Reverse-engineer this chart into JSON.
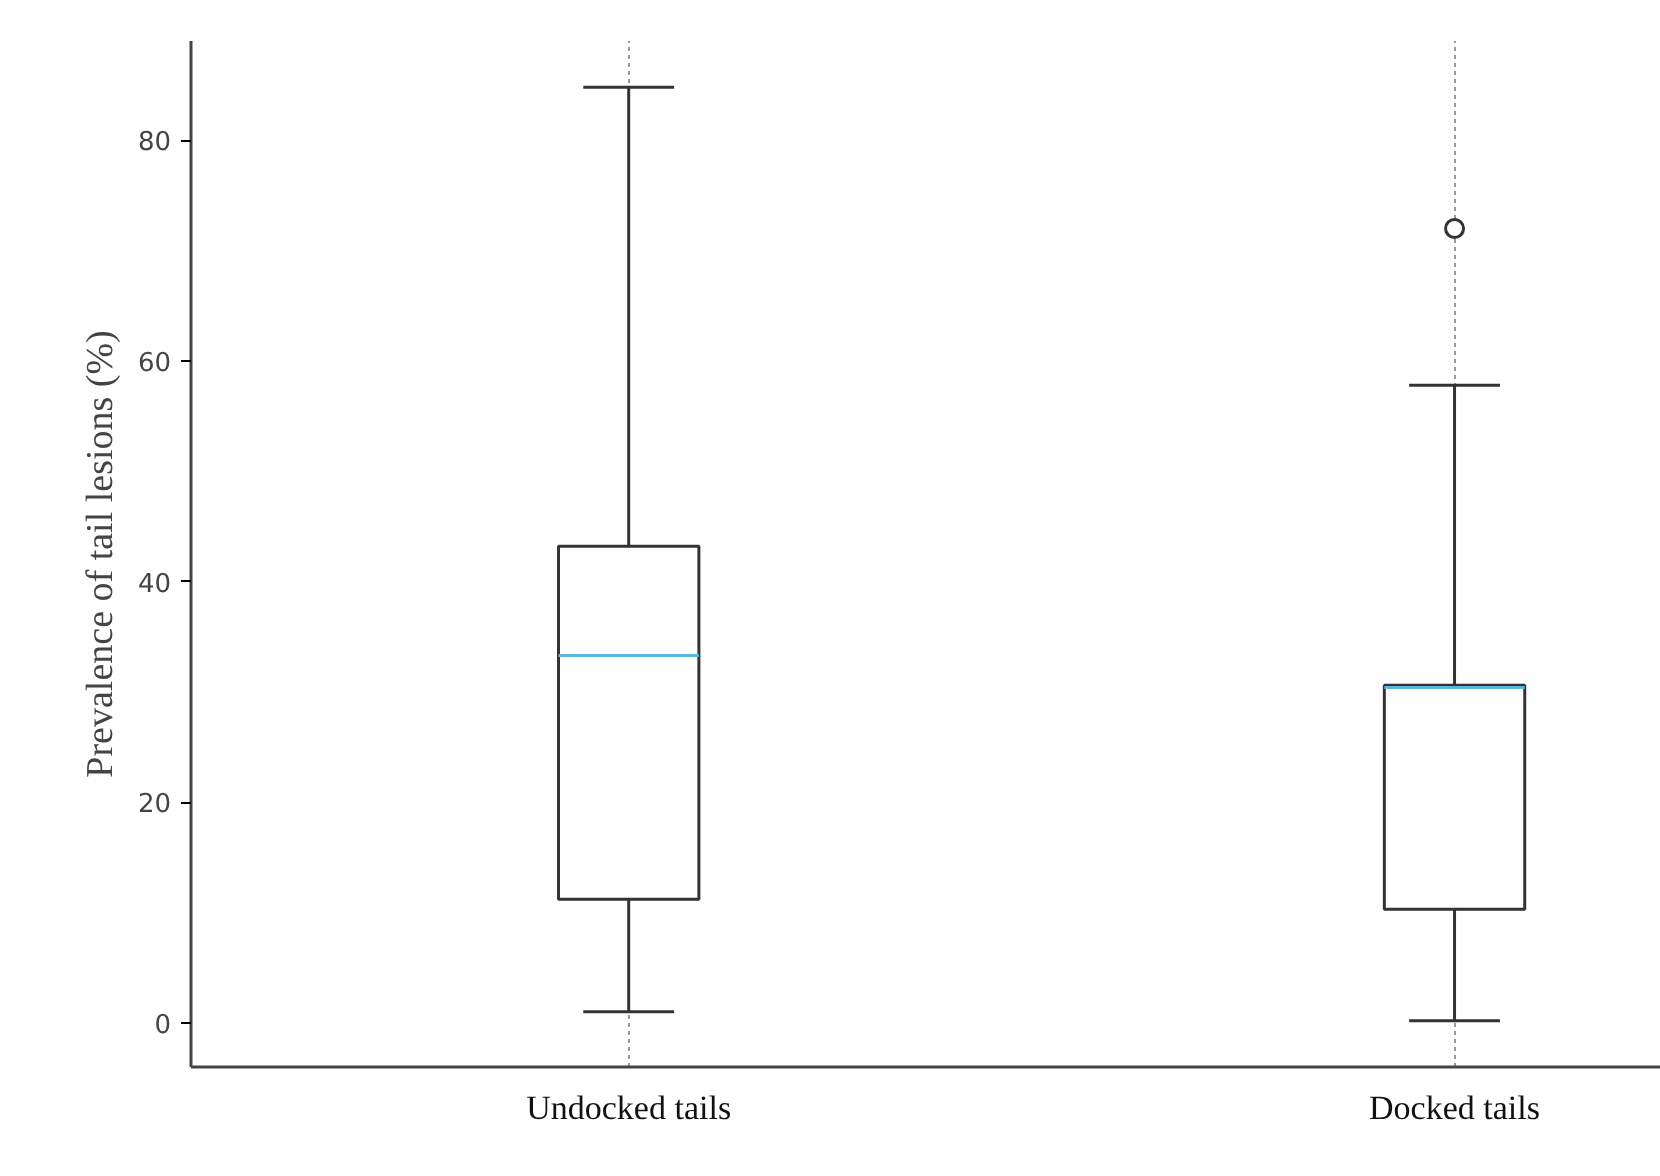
{
  "chart_data": {
    "type": "box",
    "ylabel": "Prevalence of tail lesions (%)",
    "categories": [
      "Undocked tails",
      "Docked tails"
    ],
    "boxes": [
      {
        "low": 1,
        "q1": 11.2,
        "median": 33.3,
        "q3": 43.2,
        "high": 84.8
      },
      {
        "low": 0.2,
        "q1": 10.3,
        "median": 30.4,
        "q3": 30.6,
        "high": 57.8,
        "outliers": [
          72
        ]
      }
    ],
    "color": "#333333",
    "ylim": [
      -4,
      89
    ],
    "yticks": [
      0,
      20,
      40,
      60,
      80
    ],
    "grid": "x",
    "marker": "circle"
  }
}
